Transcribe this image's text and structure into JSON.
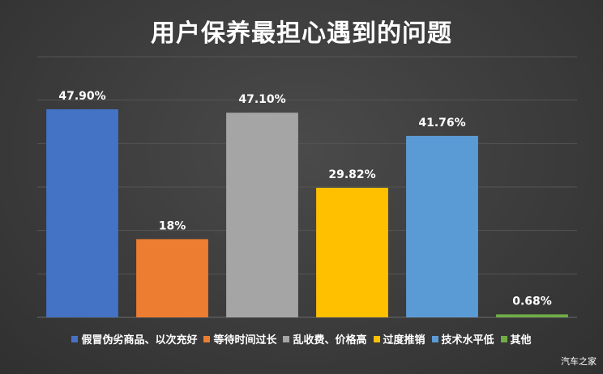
{
  "chart_data": {
    "type": "bar",
    "title": "用户保养最担心遇到的问题",
    "categories": [
      "假冒伪劣商品、以次充好",
      "等待时间过长",
      "乱收费、价格高",
      "过度推销",
      "技术水平低",
      "其他"
    ],
    "values": [
      47.9,
      18,
      47.1,
      29.82,
      41.76,
      0.68
    ],
    "data_labels": [
      "47.90%",
      "18%",
      "47.10%",
      "29.82%",
      "41.76%",
      "0.68%"
    ],
    "colors": [
      "#4472c4",
      "#ed7d31",
      "#a5a5a5",
      "#ffc000",
      "#5b9bd5",
      "#70ad47"
    ],
    "ylim": [
      0,
      60
    ],
    "grid": true,
    "legend_position": "bottom"
  },
  "watermark": "汽车之家"
}
